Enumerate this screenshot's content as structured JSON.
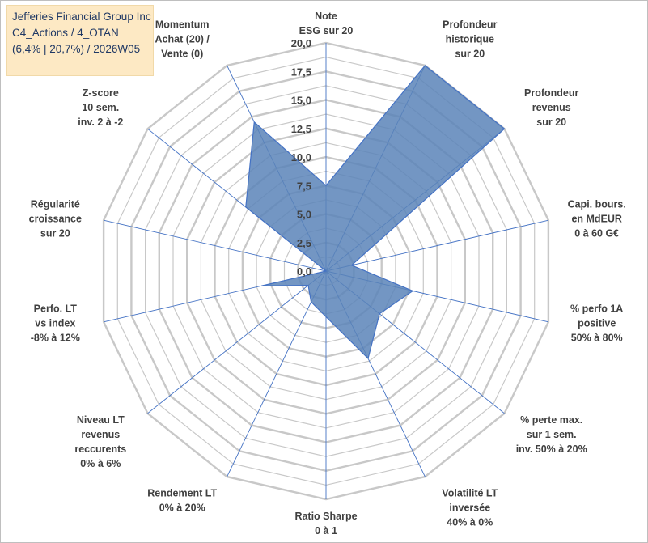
{
  "title": {
    "line1": "Jefferies Financial Group Inc",
    "line2": "C4_Actions / 4_OTAN",
    "line3": "(6,4% | 20,7%) / 2026W05"
  },
  "colors": {
    "grid": "#c8c8c8",
    "spoke": "#4472c4",
    "fill": "#5b84b8",
    "stroke": "#4472c4",
    "text": "#404040"
  },
  "chart_data": {
    "type": "radar",
    "range": [
      0,
      20
    ],
    "ticks": [
      "0,0",
      "2,5",
      "5,0",
      "7,5",
      "10,0",
      "12,5",
      "15,0",
      "17,5",
      "20,0"
    ],
    "categories": [
      [
        "Note",
        "ESG sur 20"
      ],
      [
        "Profondeur",
        "historique",
        "sur 20"
      ],
      [
        "Profondeur",
        "revenus",
        "sur 20"
      ],
      [
        "Capi. bours.",
        "en MdEUR",
        "0 à 60 G€"
      ],
      [
        "% perfo 1A",
        "positive",
        "50% à 80%"
      ],
      [
        "% perte max.",
        "sur 1 sem.",
        "inv. 50% à 20%"
      ],
      [
        "Volatilité LT",
        "inversée",
        "40% à 0%"
      ],
      [
        "Ratio Sharpe",
        "0 à 1"
      ],
      [
        "Rendement LT",
        "0% à 20%"
      ],
      [
        "Niveau LT",
        "revenus",
        "reccurents",
        "0% à 6%"
      ],
      [
        "Perfo. LT",
        "vs index",
        "-8% à 12%"
      ],
      [
        "Régularité",
        "croissance",
        "sur 20"
      ],
      [
        "Z-score",
        "10 sem.",
        "inv. 2 à -2"
      ],
      [
        "Momentum",
        "Achat (20) /",
        "Vente (0)"
      ]
    ],
    "series": [
      {
        "name": "Jefferies Financial Group Inc",
        "values": [
          7.5,
          20,
          20,
          2.3,
          7.8,
          6.0,
          8.5,
          4.0,
          3.0,
          2.0,
          5.8,
          0.0,
          9.0,
          14.5
        ]
      }
    ]
  }
}
